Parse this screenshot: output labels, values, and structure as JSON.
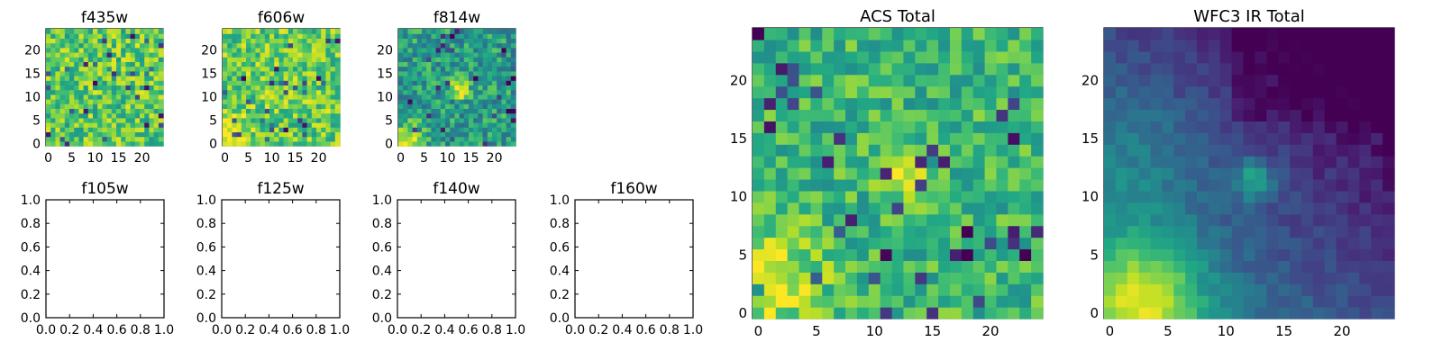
{
  "chart_data": [
    {
      "type": "heatmap",
      "title": "f435w",
      "xlim": [
        -0.5,
        24.5
      ],
      "ylim": [
        -0.5,
        24.5
      ],
      "xticks": [
        "0",
        "5",
        "10",
        "15",
        "20"
      ],
      "yticks": [
        "0",
        "5",
        "10",
        "15",
        "20"
      ],
      "colormap": "viridis",
      "grid": false,
      "value_range": [
        0.0,
        1.0
      ],
      "pixel_values": "25x25 per-pixel noise field (vmin..vmax, viridis): speckled yellow-green, no visible source"
    },
    {
      "type": "heatmap",
      "title": "f606w",
      "xlim": [
        -0.5,
        24.5
      ],
      "ylim": [
        -0.5,
        24.5
      ],
      "xticks": [
        "0",
        "5",
        "10",
        "15",
        "20"
      ],
      "yticks": [
        "0",
        "5",
        "10",
        "15",
        "20"
      ],
      "colormap": "viridis",
      "grid": false,
      "value_range": [
        0.0,
        1.0
      ],
      "pixel_values": "25x25 per-pixel noise field: yellow-green, slight brightening toward lower-left"
    },
    {
      "type": "heatmap",
      "title": "f814w",
      "xlim": [
        -0.5,
        24.5
      ],
      "ylim": [
        -0.5,
        24.5
      ],
      "xticks": [
        "0",
        "5",
        "10",
        "15",
        "20"
      ],
      "yticks": [
        "0",
        "5",
        "10",
        "15",
        "20"
      ],
      "colormap": "viridis",
      "grid": false,
      "value_range": [
        0.0,
        1.0
      ],
      "pixel_values": "25x25 field: bright sources near (12,12) and lower-left (2,1)"
    },
    {
      "type": "heatmap",
      "title": "f105w",
      "xlim": [
        0.0,
        1.0
      ],
      "ylim": [
        0.0,
        1.0
      ],
      "xticks": [
        "0.0",
        "0.2",
        "0.4",
        "0.6",
        "0.8",
        "1.0"
      ],
      "yticks": [
        "0.0",
        "0.2",
        "0.4",
        "0.6",
        "0.8",
        "1.0"
      ],
      "grid": false,
      "pixel_values": "empty axes"
    },
    {
      "type": "heatmap",
      "title": "f125w",
      "xlim": [
        0.0,
        1.0
      ],
      "ylim": [
        0.0,
        1.0
      ],
      "xticks": [
        "0.0",
        "0.2",
        "0.4",
        "0.6",
        "0.8",
        "1.0"
      ],
      "yticks": [
        "0.0",
        "0.2",
        "0.4",
        "0.6",
        "0.8",
        "1.0"
      ],
      "grid": false,
      "pixel_values": "empty axes"
    },
    {
      "type": "heatmap",
      "title": "f140w",
      "xlim": [
        0.0,
        1.0
      ],
      "ylim": [
        0.0,
        1.0
      ],
      "xticks": [
        "0.0",
        "0.2",
        "0.4",
        "0.6",
        "0.8",
        "1.0"
      ],
      "yticks": [
        "0.0",
        "0.2",
        "0.4",
        "0.6",
        "0.8",
        "1.0"
      ],
      "grid": false,
      "pixel_values": "empty axes"
    },
    {
      "type": "heatmap",
      "title": "f160w",
      "xlim": [
        0.0,
        1.0
      ],
      "ylim": [
        0.0,
        1.0
      ],
      "xticks": [
        "0.0",
        "0.2",
        "0.4",
        "0.6",
        "0.8",
        "1.0"
      ],
      "yticks": [
        "0.0",
        "0.2",
        "0.4",
        "0.6",
        "0.8",
        "1.0"
      ],
      "grid": false,
      "pixel_values": "empty axes"
    },
    {
      "type": "heatmap",
      "title": "ACS Total",
      "xlim": [
        -0.5,
        24.5
      ],
      "ylim": [
        -0.5,
        24.5
      ],
      "xticks": [
        "0",
        "5",
        "10",
        "15",
        "20"
      ],
      "yticks": [
        "0",
        "5",
        "10",
        "15",
        "20"
      ],
      "colormap": "viridis",
      "grid": false,
      "value_range": [
        0.0,
        1.0
      ],
      "pixel_values": "25x25 field: bright compact source near (12,12), bright region lower-left (0-4, 0-7)"
    },
    {
      "type": "heatmap",
      "title": "WFC3 IR Total",
      "xlim": [
        -0.5,
        24.5
      ],
      "ylim": [
        -0.5,
        24.5
      ],
      "xticks": [
        "0",
        "5",
        "10",
        "15",
        "20"
      ],
      "yticks": [
        "0",
        "5",
        "10",
        "15",
        "20"
      ],
      "colormap": "viridis",
      "grid": false,
      "value_range": [
        0.0,
        1.0
      ],
      "pixel_values": "25x25 smooth field: bright source near (12,12), extended bright blob lower-left centered (3,1), dark upper-right"
    }
  ]
}
